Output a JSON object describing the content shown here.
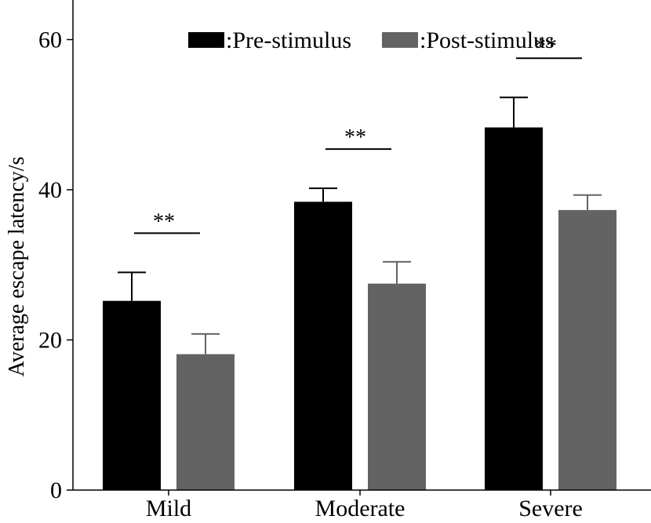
{
  "chart_data": {
    "type": "bar",
    "title": "",
    "xlabel": "",
    "ylabel": "Average escape latency/s",
    "ylim": [
      0,
      65
    ],
    "yticks": [
      0,
      20,
      40,
      60
    ],
    "categories": [
      "Mild",
      "Moderate",
      "Severe"
    ],
    "series": [
      {
        "name": ":Pre-stimulus",
        "color": "#000000",
        "values": [
          25.2,
          38.4,
          48.3
        ],
        "errors": [
          3.8,
          1.8,
          4.0
        ]
      },
      {
        "name": ":Post-stimulus",
        "color": "#636363",
        "values": [
          18.1,
          27.5,
          37.3
        ],
        "errors": [
          2.7,
          2.9,
          2.0
        ]
      }
    ],
    "significance": [
      "**",
      "**",
      "**"
    ],
    "grid": false,
    "legend_position": "top"
  }
}
